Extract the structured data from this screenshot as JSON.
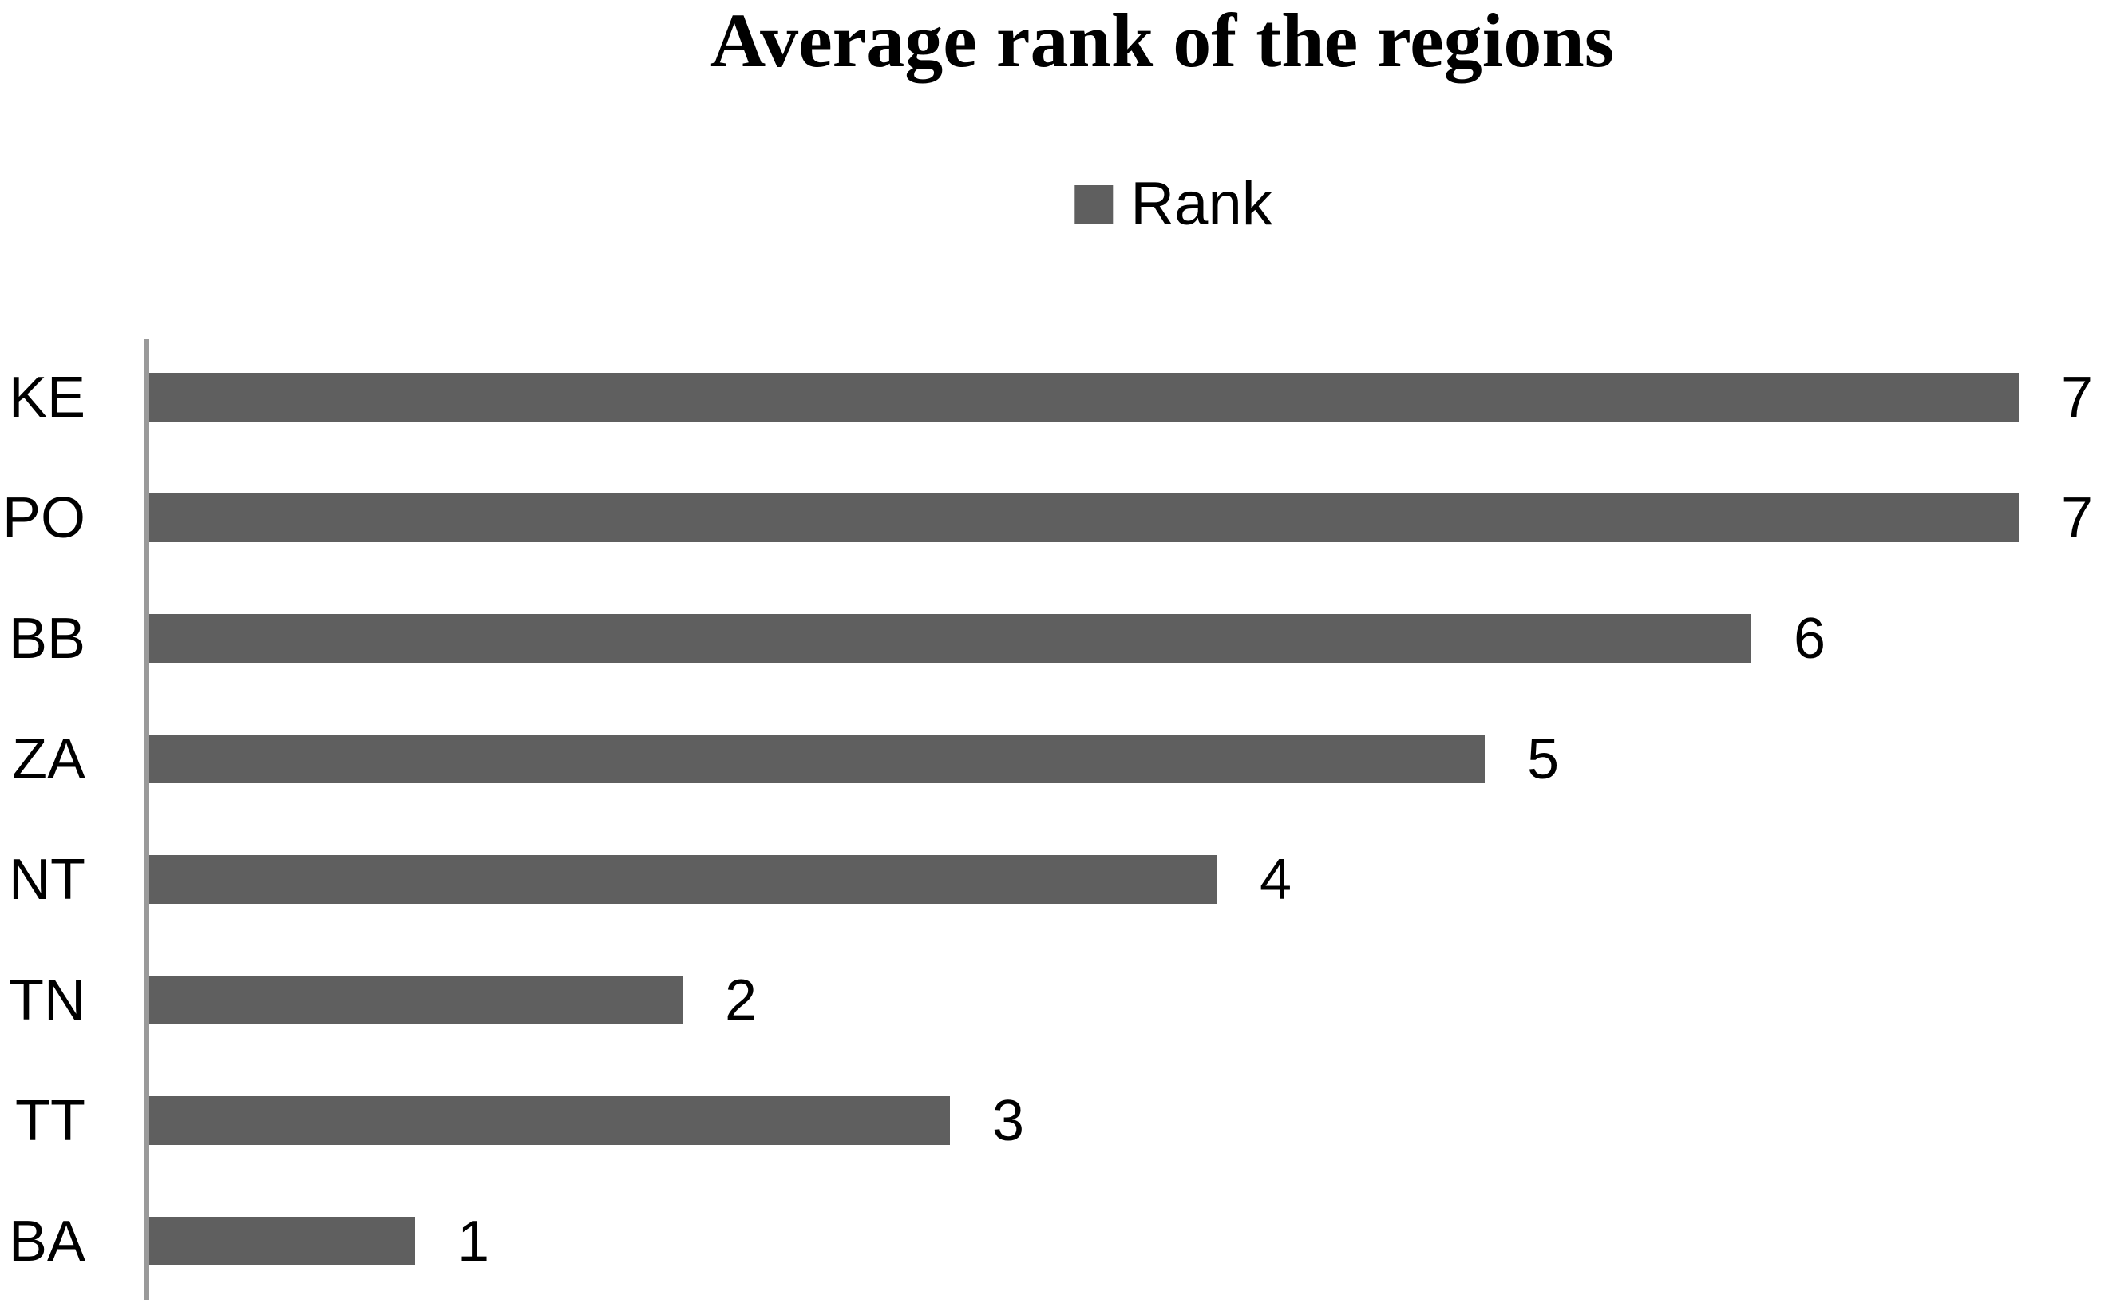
{
  "title": "Average rank of the regions",
  "legend": {
    "label": "Rank",
    "swatch_color": "#5f5f5f"
  },
  "chart_data": {
    "type": "bar",
    "orientation": "horizontal",
    "title": "Average rank of the regions",
    "categories": [
      "KE",
      "PO",
      "BB",
      "ZA",
      "NT",
      "TN",
      "TT",
      "BA"
    ],
    "series": [
      {
        "name": "Rank",
        "values": [
          7,
          7,
          6,
          5,
          4,
          2,
          3,
          1
        ]
      }
    ],
    "data_labels": [
      7,
      7,
      6,
      5,
      4,
      2,
      3,
      1
    ],
    "xlabel": "",
    "ylabel": "",
    "xlim": [
      0,
      7
    ],
    "grid": false,
    "legend_position": "top-center",
    "bar_color": "#5f5f5f",
    "axis_line_color": "#9a9a9a",
    "text_color": "#000000",
    "background_color": "#ffffff"
  }
}
